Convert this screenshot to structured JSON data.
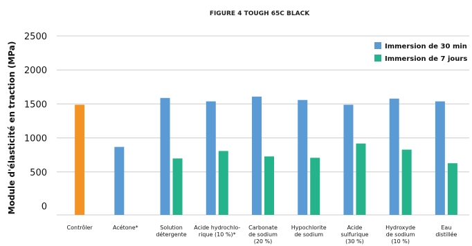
{
  "chart_data": {
    "type": "bar",
    "title": "FIGURE 4 TOUGH 65C BLACK",
    "ylabel": "Module d'élasticité en traction (MPa)",
    "xlabel": "",
    "ylim": [
      0,
      2500
    ],
    "yticks": [
      0,
      500,
      1000,
      1500,
      2000,
      2500
    ],
    "grid": true,
    "legend_position": "top-right",
    "categories": [
      [
        "Contrôler"
      ],
      [
        "Acétone*"
      ],
      [
        "Solution",
        "détergente"
      ],
      [
        "Acide hydrochlo-",
        "rique (10 %)*"
      ],
      [
        "Carbonate",
        "de sodium",
        "(20 %)"
      ],
      [
        "Hypochlorite",
        "de sodium"
      ],
      [
        "Acide",
        "sulfurique",
        "(30 %)"
      ],
      [
        "Hydroxyde",
        "de sodium",
        "(10 %)"
      ],
      [
        "Eau",
        "distillée"
      ]
    ],
    "control": {
      "category_index": 0,
      "value": 1620,
      "color": "#f39325"
    },
    "series": [
      {
        "name": "Immersion de 30 min",
        "color": "#5b9bd5",
        "values": [
          null,
          1000,
          1720,
          1670,
          1740,
          1690,
          1620,
          1710,
          1670
        ]
      },
      {
        "name": "Immersion de 7 jours",
        "color": "#24b38b",
        "values": [
          null,
          null,
          830,
          940,
          860,
          840,
          1050,
          960,
          760
        ]
      }
    ]
  }
}
